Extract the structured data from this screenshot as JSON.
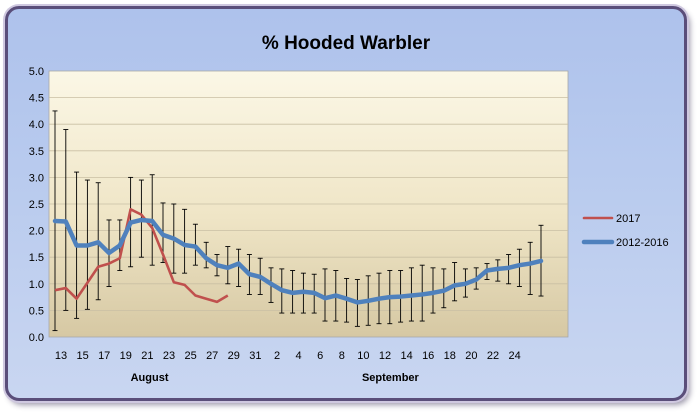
{
  "chart_data": {
    "type": "line",
    "title": "% Hooded Warbler",
    "xlabel": "",
    "ylabel": "",
    "ylim": [
      0,
      5
    ],
    "yticks": [
      "0.0",
      "0.5",
      "1.0",
      "1.5",
      "2.0",
      "2.5",
      "3.0",
      "3.5",
      "4.0",
      "4.5",
      "5.0"
    ],
    "x_tick_labels": [
      "13",
      "15",
      "17",
      "19",
      "21",
      "23",
      "25",
      "27",
      "29",
      "31",
      "2",
      "4",
      "6",
      "8",
      "10",
      "12",
      "14",
      "16",
      "18",
      "20",
      "22",
      "24"
    ],
    "month_labels": [
      "August",
      "September"
    ],
    "legend_position": "right",
    "grid": "horizontal",
    "colors": {
      "2017": "#c0504d",
      "2012-2016": "#4f81bd",
      "error_bar": "#000000"
    },
    "series": [
      {
        "name": "2017",
        "values": [
          0.88,
          0.92,
          0.72,
          1.02,
          1.32,
          1.38,
          1.48,
          2.4,
          2.3,
          2.05,
          1.55,
          1.03,
          0.98,
          0.78,
          0.72,
          0.66,
          0.78
        ]
      },
      {
        "name": "2012-2016",
        "values": [
          2.18,
          2.17,
          1.72,
          1.72,
          1.78,
          1.58,
          1.72,
          2.15,
          2.2,
          2.18,
          1.92,
          1.85,
          1.73,
          1.7,
          1.48,
          1.35,
          1.3,
          1.38,
          1.18,
          1.13,
          1.0,
          0.88,
          0.83,
          0.85,
          0.83,
          0.73,
          0.78,
          0.72,
          0.65,
          0.68,
          0.72,
          0.75,
          0.76,
          0.78,
          0.8,
          0.83,
          0.87,
          0.97,
          1.0,
          1.08,
          1.25,
          1.28,
          1.3,
          1.35,
          1.38,
          1.43
        ],
        "error_low": [
          0.12,
          0.5,
          0.35,
          0.52,
          0.7,
          0.95,
          1.25,
          1.32,
          1.5,
          1.35,
          1.4,
          1.2,
          1.2,
          1.35,
          1.3,
          1.15,
          1.0,
          0.95,
          0.8,
          0.8,
          0.65,
          0.45,
          0.45,
          0.45,
          0.45,
          0.3,
          0.3,
          0.28,
          0.2,
          0.22,
          0.25,
          0.25,
          0.28,
          0.3,
          0.3,
          0.45,
          0.55,
          0.68,
          0.75,
          0.9,
          1.08,
          1.05,
          1.0,
          0.95,
          0.8,
          0.77
        ],
        "error_high": [
          4.25,
          3.9,
          3.1,
          2.95,
          2.9,
          2.2,
          2.2,
          3.0,
          2.95,
          3.05,
          2.52,
          2.5,
          2.4,
          2.12,
          1.78,
          1.55,
          1.7,
          1.65,
          1.55,
          1.48,
          1.3,
          1.28,
          1.25,
          1.2,
          1.18,
          1.28,
          1.25,
          1.1,
          1.08,
          1.15,
          1.2,
          1.25,
          1.25,
          1.3,
          1.35,
          1.3,
          1.28,
          1.4,
          1.28,
          1.3,
          1.38,
          1.45,
          1.55,
          1.65,
          1.78,
          2.1
        ]
      }
    ]
  }
}
